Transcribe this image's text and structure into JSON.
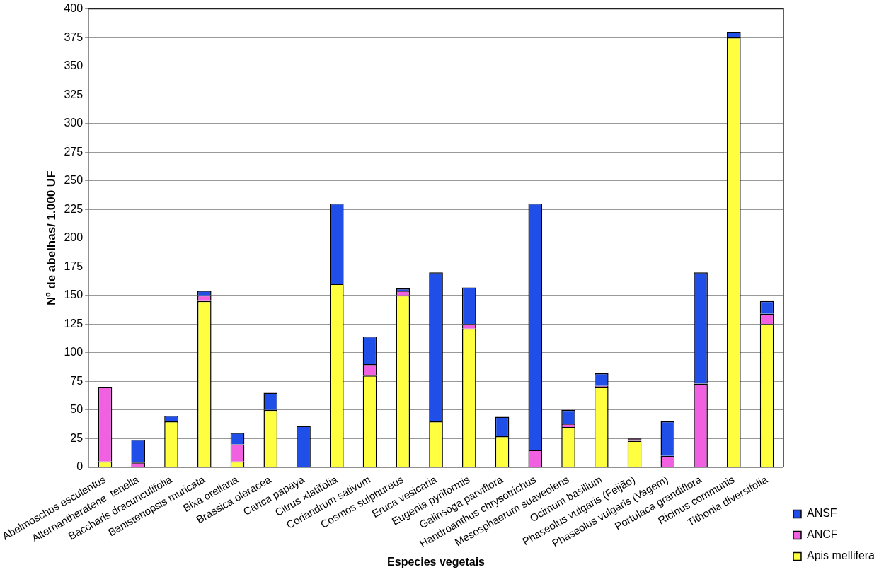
{
  "chart_data": {
    "type": "bar",
    "stacked": true,
    "xlabel": "Especies vegetais",
    "ylabel": "Nº de abelhas/ 1.000 UF",
    "categories": [
      "Abelmoschus esculentus",
      "Alternantheratene  tenella",
      "Baccharis dracunculifolia",
      "Banisteriopsis muricata",
      "Bixa orellana",
      "Brassica oleracea",
      "Carica papaya",
      "Citrus ×latifolia",
      "Coriandrum sativum",
      "Cosmos sulphureus",
      "Eruca vesicaria",
      "Eugenia pyriformis",
      "Galinsoga parviflora",
      "Handroanthus chrysotrichus",
      "Mesosphaerum suaveolens",
      "Ocimum basilium",
      "Phaseolus vulgaris (Feijão)",
      "Phaseolus vulgaris (Vagem)",
      "Portulaca grandiflora",
      "Ricinus communis",
      "Tithonia diversifolia"
    ],
    "series": [
      {
        "name": "Apis mellifera",
        "color": "#ffff40",
        "values": [
          5,
          0,
          40,
          145,
          5,
          50,
          0,
          160,
          80,
          150,
          40,
          121,
          27,
          0,
          35,
          70,
          23,
          0,
          0,
          375,
          125
        ]
      },
      {
        "name": "ANCF",
        "color": "#f060e0",
        "values": [
          65,
          4,
          0,
          5,
          15,
          0,
          0,
          0,
          10,
          4,
          0,
          4,
          0,
          15,
          3,
          1,
          2,
          10,
          73,
          0,
          9
        ]
      },
      {
        "name": "ANSF",
        "color": "#1f4fe8",
        "values": [
          0,
          20,
          5,
          4,
          10,
          15,
          36,
          70,
          24,
          2,
          130,
          32,
          17,
          215,
          12,
          11,
          0,
          30,
          97,
          5,
          11
        ]
      }
    ],
    "ylim": [
      0,
      400
    ],
    "yticks": [
      0,
      25,
      50,
      75,
      100,
      125,
      150,
      175,
      200,
      225,
      250,
      275,
      300,
      325,
      350,
      375,
      400
    ],
    "grid": "y",
    "legend": "bottom right"
  }
}
